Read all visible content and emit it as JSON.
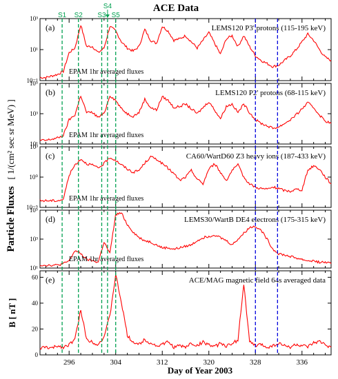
{
  "figure": {
    "title": "ACE Data",
    "ylabel_main": "Particle Fluxes",
    "ylabel_units": "[ 1/(cm² sec sr MeV) ]",
    "xlabel": "Day of Year 2003"
  },
  "colors": {
    "data": "#ff0000",
    "shock_line": "#00a050",
    "cme_line": "#0000dd",
    "shock_label": "#00a050",
    "axis": "#000000"
  },
  "chart_data": [
    {
      "id": "a",
      "type": "line",
      "panel_label": "(a)",
      "legend": "LEMS120 P3' protons (115-195 keV)",
      "note": "EPAM 1hr averaged fluxes",
      "y_scale": "log",
      "xlim": [
        291,
        341
      ],
      "ylim_exp": [
        -1,
        3
      ],
      "y_tick_labels": [
        "10³",
        "10¹",
        "10⁻¹"
      ],
      "x": [
        291,
        292,
        293,
        294,
        295,
        296,
        297,
        298,
        299,
        300,
        301,
        302,
        303,
        304,
        305,
        306,
        307,
        308,
        309,
        310,
        311,
        312,
        313,
        314,
        315,
        316,
        317,
        318,
        319,
        320,
        321,
        322,
        323,
        324,
        325,
        326,
        327,
        328,
        329,
        330,
        331,
        332,
        333,
        334,
        335,
        336,
        337,
        338,
        339,
        340,
        341
      ],
      "y_exp": [
        -0.8,
        -0.8,
        -0.7,
        -0.6,
        -0.4,
        0.8,
        1.1,
        2.6,
        1.2,
        1.2,
        0.8,
        1.1,
        2.5,
        2.2,
        1.5,
        1.1,
        0.9,
        1.2,
        2.3,
        1.6,
        1.4,
        2.5,
        2.2,
        1.6,
        1.7,
        1.9,
        1.5,
        1.1,
        1.6,
        2.1,
        1.4,
        0.7,
        1.7,
        1.9,
        1.2,
        1.9,
        1.2,
        0.6,
        0.3,
        0.1,
        -0.1,
        0.0,
        0.3,
        0.6,
        1.0,
        1.5,
        2.0,
        1.6,
        1.0,
        0.5,
        0.3
      ]
    },
    {
      "id": "b",
      "type": "line",
      "panel_label": "(b)",
      "legend": "LEMS120 P2' protons (68-115 keV)",
      "note": "EPAM 1hr averaged fluxes",
      "y_scale": "log",
      "xlim": [
        291,
        341
      ],
      "ylim_exp": [
        0,
        5
      ],
      "y_tick_labels": [
        "10⁵",
        "10³",
        "10¹"
      ],
      "x": [
        291,
        292,
        293,
        294,
        295,
        296,
        297,
        298,
        299,
        300,
        301,
        302,
        303,
        304,
        305,
        306,
        307,
        308,
        309,
        310,
        311,
        312,
        313,
        314,
        315,
        316,
        317,
        318,
        319,
        320,
        321,
        322,
        323,
        324,
        325,
        326,
        327,
        328,
        329,
        330,
        331,
        332,
        333,
        334,
        335,
        336,
        337,
        338,
        339,
        340,
        341
      ],
      "y_exp": [
        0.3,
        0.3,
        0.4,
        0.5,
        0.7,
        2.0,
        2.4,
        4.0,
        2.6,
        2.6,
        2.2,
        2.5,
        4.0,
        3.6,
        2.9,
        2.5,
        2.3,
        2.6,
        3.7,
        3.0,
        2.8,
        3.9,
        3.6,
        3.0,
        3.1,
        3.3,
        2.9,
        2.5,
        3.0,
        3.5,
        2.8,
        2.1,
        3.1,
        3.3,
        2.6,
        3.3,
        2.6,
        2.0,
        1.7,
        1.5,
        1.3,
        1.4,
        1.7,
        2.0,
        2.4,
        2.9,
        3.4,
        3.0,
        2.4,
        1.9,
        1.7
      ]
    },
    {
      "id": "c",
      "type": "line",
      "panel_label": "(c)",
      "legend": "CA60/WartD60 Z3 heavy ions (187-433 keV)",
      "note": "EPAM 1hr averaged fluxes",
      "y_scale": "log",
      "xlim": [
        291,
        341
      ],
      "ylim_exp": [
        -6,
        3
      ],
      "y_tick_labels": [
        "10³",
        "10⁰",
        "10⁻⁵"
      ],
      "x": [
        291,
        292,
        293,
        294,
        295,
        296,
        297,
        298,
        299,
        300,
        301,
        302,
        303,
        304,
        305,
        306,
        307,
        308,
        309,
        310,
        311,
        312,
        313,
        314,
        315,
        316,
        317,
        318,
        319,
        320,
        321,
        322,
        323,
        324,
        325,
        326,
        327,
        328,
        329,
        330,
        331,
        332,
        333,
        334,
        335,
        336,
        337,
        338,
        339,
        340,
        341
      ],
      "y_exp": [
        -5.0,
        -5.0,
        -5.0,
        -5.0,
        -4.8,
        -1.2,
        0.3,
        1.2,
        0.5,
        0.3,
        -0.2,
        0.5,
        1.4,
        1.0,
        0.3,
        -0.3,
        -0.8,
        -0.5,
        0.6,
        1.5,
        1.2,
        0.5,
        -0.2,
        -1.0,
        -2.0,
        -1.5,
        -0.5,
        -1.8,
        -2.5,
        -0.3,
        0.5,
        -0.8,
        -2.0,
        -0.5,
        0.3,
        -1.5,
        -2.5,
        -3.0,
        -3.2,
        -3.3,
        -3.0,
        -3.2,
        -3.5,
        -3.6,
        -3.3,
        -3.4,
        -0.5,
        0.2,
        -0.3,
        -1.5,
        -2.5
      ]
    },
    {
      "id": "d",
      "type": "line",
      "panel_label": "(d)",
      "legend": "LEMS30/WartB DE4 electrons (175-315 keV)",
      "note": "EPAM 1hr averaged fluxes",
      "y_scale": "log",
      "xlim": [
        291,
        341
      ],
      "ylim_exp": [
        1,
        5
      ],
      "y_tick_labels": [
        "10⁵",
        "10³",
        "10¹"
      ],
      "x": [
        291,
        292,
        293,
        294,
        295,
        296,
        297,
        298,
        299,
        300,
        301,
        302,
        303,
        304,
        305,
        306,
        307,
        308,
        309,
        310,
        311,
        312,
        313,
        314,
        315,
        316,
        317,
        318,
        319,
        320,
        321,
        322,
        323,
        324,
        325,
        326,
        327,
        328,
        329,
        330,
        331,
        332,
        333,
        334,
        335,
        336,
        337,
        338,
        339,
        340,
        341
      ],
      "y_exp": [
        1.2,
        1.2,
        1.2,
        1.2,
        1.3,
        1.5,
        2.2,
        2.0,
        1.6,
        1.5,
        1.4,
        2.8,
        2.0,
        4.7,
        4.8,
        4.0,
        3.5,
        3.1,
        2.9,
        2.8,
        2.6,
        2.4,
        2.4,
        2.3,
        2.4,
        2.5,
        2.6,
        2.9,
        3.1,
        3.2,
        3.3,
        3.1,
        2.9,
        2.6,
        3.0,
        3.4,
        3.8,
        3.9,
        3.6,
        3.0,
        2.3,
        2.0,
        1.9,
        1.8,
        1.7,
        1.6,
        1.5,
        1.5,
        1.4,
        1.4,
        1.3
      ]
    },
    {
      "id": "e",
      "type": "line",
      "panel_label": "(e)",
      "legend": "ACE/MAG magnetic field 64s averaged data",
      "ylabel": "B [ nT ]",
      "y_scale": "linear",
      "xlim": [
        291,
        341
      ],
      "ylim": [
        0,
        65
      ],
      "y_ticks": [
        0,
        20,
        40,
        60
      ],
      "x_ticks": [
        296,
        304,
        312,
        320,
        328,
        336
      ],
      "x": [
        291,
        292,
        293,
        294,
        295,
        296,
        297,
        298,
        299,
        300,
        301,
        302,
        303,
        304,
        305,
        306,
        307,
        308,
        309,
        310,
        311,
        312,
        313,
        314,
        315,
        316,
        317,
        318,
        319,
        320,
        321,
        322,
        323,
        324,
        325,
        326,
        327,
        328,
        329,
        330,
        331,
        332,
        333,
        334,
        335,
        336,
        337,
        338,
        339,
        340,
        341
      ],
      "y": [
        5,
        6,
        5,
        7,
        6,
        8,
        12,
        35,
        12,
        10,
        8,
        14,
        30,
        62,
        40,
        15,
        10,
        8,
        12,
        9,
        7,
        8,
        10,
        6,
        7,
        6,
        9,
        7,
        10,
        8,
        6,
        9,
        7,
        8,
        12,
        55,
        10,
        7,
        8,
        6,
        7,
        9,
        7,
        6,
        8,
        7,
        6,
        9,
        10,
        8,
        6
      ]
    }
  ],
  "events": {
    "shocks": [
      {
        "label": "S1",
        "day": 294.8
      },
      {
        "label": "S2",
        "day": 297.6
      },
      {
        "label": "S3",
        "day": 301.6
      },
      {
        "label": "S4",
        "day": 302.6
      },
      {
        "label": "S5",
        "day": 304.0
      }
    ],
    "cme_boundaries": [
      {
        "day": 328.0
      },
      {
        "day": 331.8
      }
    ]
  }
}
